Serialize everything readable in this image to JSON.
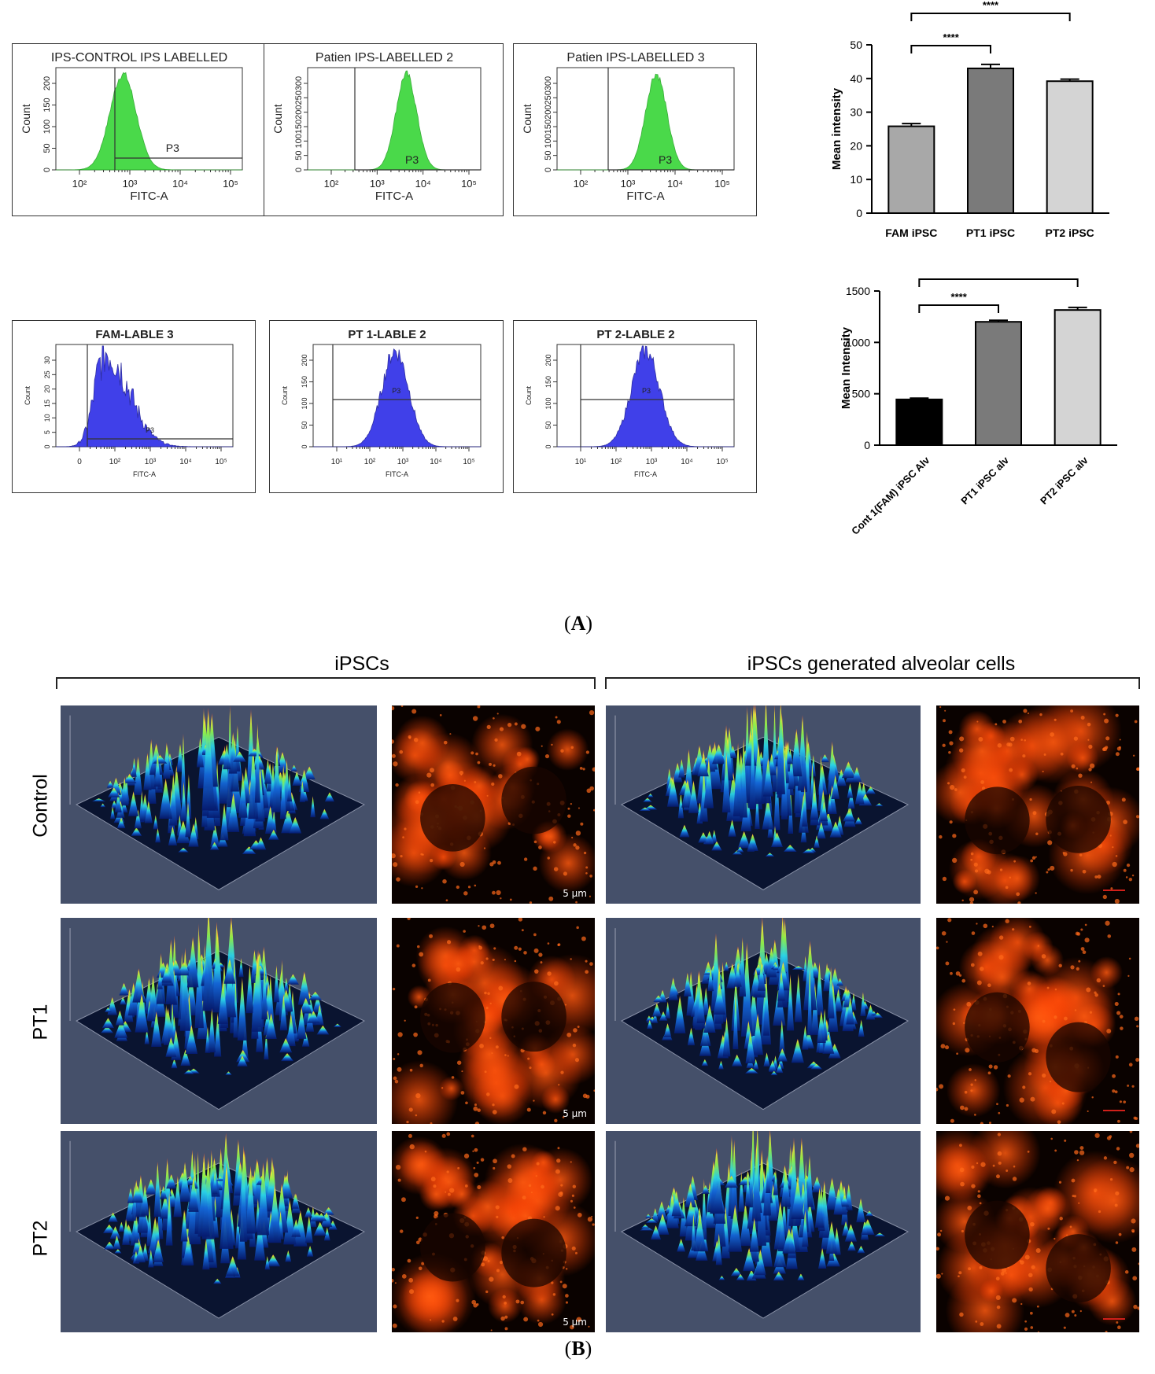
{
  "panel_a": {
    "label": "A",
    "histograms": [
      {
        "title": "IPS-CONTROL IPS LABELLED",
        "gate": "P3",
        "ylabel": "Count",
        "xlabel": "FITC-A",
        "yticks": [
          "0",
          "50",
          "100",
          "150",
          "200"
        ],
        "xticks": [
          "10²",
          "10³",
          "10⁴",
          "10⁵"
        ],
        "color": "#3bd63b"
      },
      {
        "title": "Patien IPS-LABELLED 2",
        "gate": "P3",
        "ylabel": "Count",
        "xlabel": "FITC-A",
        "yticks": [
          "0",
          "50",
          "100",
          "150",
          "200",
          "250",
          "300"
        ],
        "xticks": [
          "10²",
          "10³",
          "10⁴",
          "10⁵"
        ],
        "color": "#3bd63b"
      },
      {
        "title": "Patien IPS-LABELLED 3",
        "gate": "P3",
        "ylabel": "Count",
        "xlabel": "FITC-A",
        "yticks": [
          "0",
          "50",
          "100",
          "150",
          "200",
          "250",
          "300"
        ],
        "xticks": [
          "10²",
          "10³",
          "10⁴",
          "10⁵"
        ],
        "color": "#3bd63b"
      },
      {
        "title": "FAM-LABLE 3",
        "gate": "P3",
        "ylabel": "Count",
        "xlabel": "FITC-A",
        "yticks": [
          "0",
          "5",
          "10",
          "15",
          "20",
          "25",
          "30"
        ],
        "xticks": [
          "0",
          "10²",
          "10³",
          "10⁴",
          "10⁵"
        ],
        "color": "#3030e8"
      },
      {
        "title": "PT 1-LABLE 2",
        "gate": "P3",
        "ylabel": "Count",
        "xlabel": "FITC-A",
        "yticks": [
          "0",
          "50",
          "100",
          "150",
          "200"
        ],
        "xticks": [
          "10¹",
          "10²",
          "10³",
          "10⁴",
          "10⁵"
        ],
        "color": "#3030e8"
      },
      {
        "title": "PT 2-LABLE 2",
        "gate": "P3",
        "ylabel": "Count",
        "xlabel": "FITC-A",
        "yticks": [
          "0",
          "50",
          "100",
          "150",
          "200"
        ],
        "xticks": [
          "10¹",
          "10²",
          "10³",
          "10⁴",
          "10⁵"
        ],
        "color": "#3030e8"
      }
    ]
  },
  "chart_data": [
    {
      "type": "bar",
      "categories": [
        "FAM iPSC",
        "PT1 iPSC",
        "PT2 iPSC"
      ],
      "values": [
        25.8,
        43.0,
        39.2
      ],
      "errors": [
        0.8,
        1.2,
        0.6
      ],
      "colors": [
        "#a8a8a8",
        "#7a7a7a",
        "#d4d4d4"
      ],
      "ylabel": "Mean intensity",
      "ylim": [
        0,
        50
      ],
      "yticks": [
        "0",
        "10",
        "20",
        "30",
        "40",
        "50"
      ],
      "significance": [
        {
          "from": 0,
          "to": 1,
          "label": "****"
        },
        {
          "from": 0,
          "to": 2,
          "label": "****"
        }
      ]
    },
    {
      "type": "bar",
      "categories": [
        "Cont 1(FAM) iPSC Alv",
        "PT1 iPSC alv",
        "PT2 iPSC alv"
      ],
      "values": [
        445,
        1200,
        1315
      ],
      "errors": [
        12,
        15,
        25
      ],
      "colors": [
        "#000000",
        "#7a7a7a",
        "#d4d4d4"
      ],
      "ylabel": "Mean Intensity",
      "ylim": [
        0,
        1500
      ],
      "yticks": [
        "0",
        "500",
        "1000",
        "1500"
      ],
      "significance": [
        {
          "from": 0,
          "to": 1,
          "label": "****"
        },
        {
          "from": 0,
          "to": 2,
          "label": "****"
        }
      ]
    }
  ],
  "panel_b": {
    "label": "B",
    "group_left": "iPSCs",
    "group_right": "iPSCs generated alveolar cells",
    "rows": [
      "Control",
      "PT1",
      "PT2"
    ],
    "scale_label": "5 μm"
  }
}
